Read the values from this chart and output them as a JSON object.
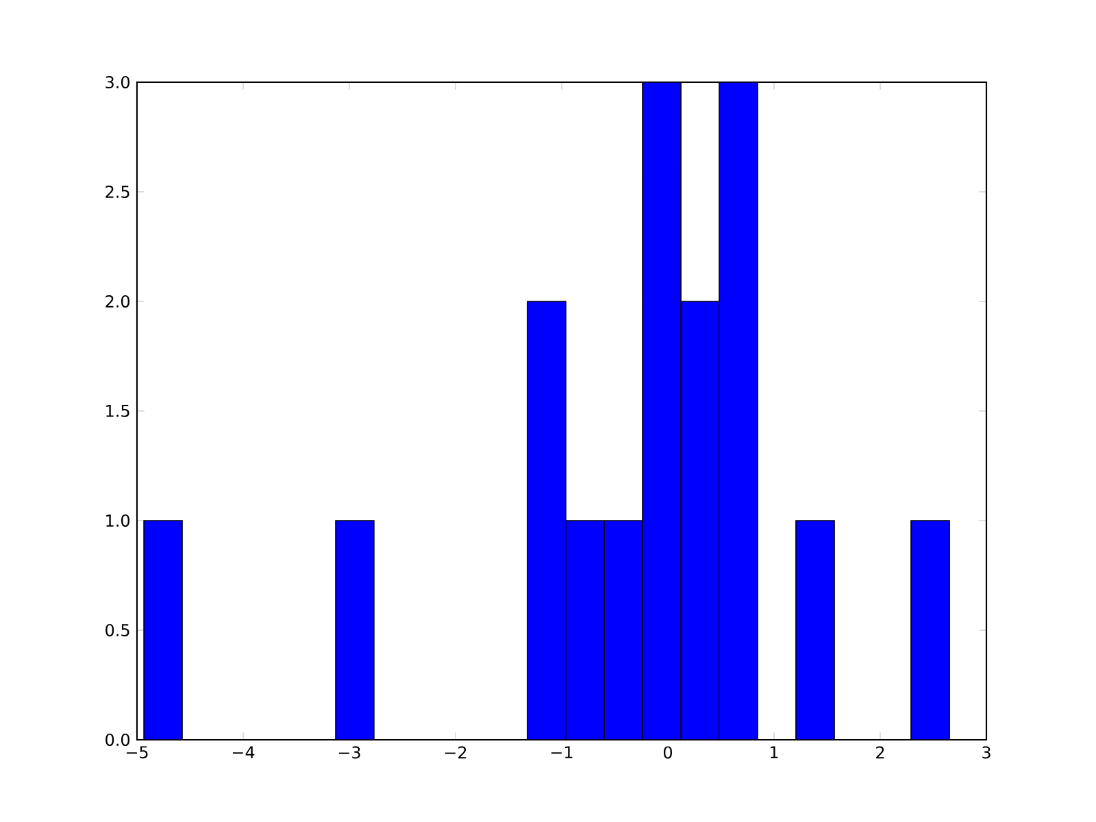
{
  "chart_data": {
    "type": "histogram",
    "bins": [
      -4.935,
      -4.574,
      -4.213,
      -3.852,
      -3.49,
      -3.129,
      -2.768,
      -2.406,
      -2.045,
      -1.684,
      -1.323,
      -0.961,
      -0.6,
      -0.239,
      0.123,
      0.484,
      0.845,
      1.206,
      1.568,
      1.929,
      2.29,
      2.652
    ],
    "values": [
      1,
      0,
      0,
      0,
      0,
      1,
      0,
      0,
      0,
      0,
      2,
      1,
      1,
      3,
      2,
      3,
      0,
      1,
      0,
      0,
      1
    ],
    "color": "#0000ff",
    "xlim": [
      -5,
      3
    ],
    "xticks": [
      {
        "value": -5,
        "label": "−5"
      },
      {
        "value": -4,
        "label": "−4"
      },
      {
        "value": -3,
        "label": "−3"
      },
      {
        "value": -2,
        "label": "−2"
      },
      {
        "value": -1,
        "label": "−1"
      },
      0,
      1,
      2,
      3
    ],
    "ylim": [
      0,
      3
    ],
    "yticks": [
      {
        "value": 0,
        "label": "0.0"
      },
      {
        "value": 0.5,
        "label": "0.5"
      },
      {
        "value": 1,
        "label": "1.0"
      },
      {
        "value": 1.5,
        "label": "1.5"
      },
      {
        "value": 2,
        "label": "2.0"
      },
      {
        "value": 2.5,
        "label": "2.5"
      },
      {
        "value": 3,
        "label": "3.0"
      }
    ],
    "grid": false
  }
}
